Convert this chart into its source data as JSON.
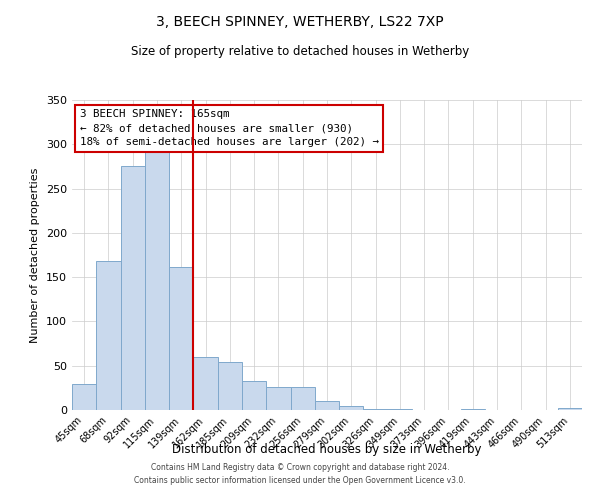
{
  "title": "3, BEECH SPINNEY, WETHERBY, LS22 7XP",
  "subtitle": "Size of property relative to detached houses in Wetherby",
  "xlabel": "Distribution of detached houses by size in Wetherby",
  "ylabel": "Number of detached properties",
  "bar_labels": [
    "45sqm",
    "68sqm",
    "92sqm",
    "115sqm",
    "139sqm",
    "162sqm",
    "185sqm",
    "209sqm",
    "232sqm",
    "256sqm",
    "279sqm",
    "302sqm",
    "326sqm",
    "349sqm",
    "373sqm",
    "396sqm",
    "419sqm",
    "443sqm",
    "466sqm",
    "490sqm",
    "513sqm"
  ],
  "bar_values": [
    29,
    168,
    276,
    291,
    162,
    60,
    54,
    33,
    26,
    26,
    10,
    5,
    1,
    1,
    0,
    0,
    1,
    0,
    0,
    0,
    2
  ],
  "bar_color": "#c9d9ed",
  "bar_edge_color": "#7fa8cc",
  "vline_color": "#cc0000",
  "vline_position": 4.5,
  "annotation_title": "3 BEECH SPINNEY: 165sqm",
  "annotation_line1": "← 82% of detached houses are smaller (930)",
  "annotation_line2": "18% of semi-detached houses are larger (202) →",
  "annotation_box_color": "#cc0000",
  "ylim": [
    0,
    350
  ],
  "yticks": [
    0,
    50,
    100,
    150,
    200,
    250,
    300,
    350
  ],
  "footer1": "Contains HM Land Registry data © Crown copyright and database right 2024.",
  "footer2": "Contains public sector information licensed under the Open Government Licence v3.0."
}
